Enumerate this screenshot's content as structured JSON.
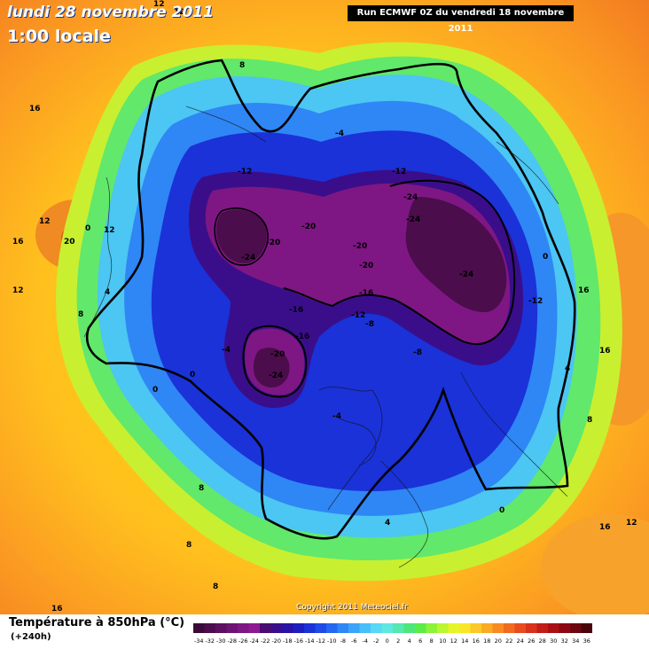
{
  "header": {
    "date": "lundi 28 novembre 2011",
    "local_time": "1:00 locale",
    "run": "Run ECMWF 0Z du vendredi 18 novembre 2011"
  },
  "copyright": "Copyright 2011 Meteociel.fr",
  "legend": {
    "title": "Température à 850hPa (°C)",
    "lead_time": "(+240h)",
    "ticks": [
      "-34",
      "-32",
      "-30",
      "-28",
      "-26",
      "-24",
      "-22",
      "-20",
      "-18",
      "-16",
      "-14",
      "-12",
      "-10",
      "-8",
      "-6",
      "-4",
      "-2",
      "0",
      "2",
      "4",
      "6",
      "8",
      "10",
      "12",
      "14",
      "16",
      "18",
      "20",
      "22",
      "24",
      "26",
      "28",
      "30",
      "32",
      "34",
      "36"
    ],
    "colors": [
      "#3b0a3a",
      "#4b0d4b",
      "#5d1060",
      "#6e1273",
      "#7e1784",
      "#8e1a92",
      "#4a0c70",
      "#3a0e8a",
      "#2a12a5",
      "#1e1ec0",
      "#1a32d8",
      "#1e4be6",
      "#2567f0",
      "#2f86f5",
      "#3aa4f8",
      "#47c0fa",
      "#56d8f6",
      "#5fe8e0",
      "#55e8b0",
      "#4ee67a",
      "#5bec48",
      "#8cf23a",
      "#bdf530",
      "#e6f52a",
      "#fae629",
      "#fcc928",
      "#fbaa26",
      "#f78a23",
      "#f06a20",
      "#e84b1e",
      "#d9311b",
      "#c21d19",
      "#a81016",
      "#8c0913",
      "#6c0610",
      "#4a050c"
    ]
  },
  "map": {
    "contour_labels": [
      {
        "text": "-24",
        "cls": "k"
      },
      {
        "text": "-24",
        "cls": "k"
      },
      {
        "text": "-24",
        "cls": "k"
      },
      {
        "text": "-24",
        "cls": "k"
      },
      {
        "text": "-24",
        "cls": "k"
      },
      {
        "text": "-20",
        "cls": "k"
      },
      {
        "text": "-20",
        "cls": "k"
      },
      {
        "text": "-20",
        "cls": "k"
      },
      {
        "text": "-20",
        "cls": "k"
      },
      {
        "text": "-20",
        "cls": "k"
      },
      {
        "text": "-16",
        "cls": "k"
      },
      {
        "text": "-16",
        "cls": "k"
      },
      {
        "text": "-16",
        "cls": "k"
      },
      {
        "text": "-12",
        "cls": "k"
      },
      {
        "text": "-12",
        "cls": "k"
      },
      {
        "text": "-12",
        "cls": "k"
      },
      {
        "text": "-12",
        "cls": "k"
      },
      {
        "text": "-8",
        "cls": "k"
      },
      {
        "text": "-8",
        "cls": "k"
      },
      {
        "text": "-4",
        "cls": "k"
      },
      {
        "text": "-4",
        "cls": "k"
      },
      {
        "text": "-4",
        "cls": "k"
      },
      {
        "text": "0",
        "cls": "k"
      },
      {
        "text": "0",
        "cls": "k"
      },
      {
        "text": "0",
        "cls": "k"
      },
      {
        "text": "0",
        "cls": "k"
      },
      {
        "text": "0",
        "cls": "k"
      },
      {
        "text": "4",
        "cls": "w"
      },
      {
        "text": "4",
        "cls": "w"
      },
      {
        "text": "4",
        "cls": "w"
      },
      {
        "text": "8",
        "cls": "w"
      },
      {
        "text": "8",
        "cls": "w"
      },
      {
        "text": "8",
        "cls": "w"
      },
      {
        "text": "8",
        "cls": "w"
      },
      {
        "text": "8",
        "cls": "w"
      },
      {
        "text": "8",
        "cls": "w"
      },
      {
        "text": "12",
        "cls": "w"
      },
      {
        "text": "12",
        "cls": "w"
      },
      {
        "text": "12",
        "cls": "w"
      },
      {
        "text": "12",
        "cls": "w"
      },
      {
        "text": "12",
        "cls": "w"
      },
      {
        "text": "12",
        "cls": "w"
      },
      {
        "text": "16",
        "cls": "w"
      },
      {
        "text": "16",
        "cls": "w"
      },
      {
        "text": "16",
        "cls": "w"
      },
      {
        "text": "16",
        "cls": "w"
      },
      {
        "text": "16",
        "cls": "w"
      },
      {
        "text": "16",
        "cls": "w"
      },
      {
        "text": "20",
        "cls": "w"
      }
    ]
  }
}
